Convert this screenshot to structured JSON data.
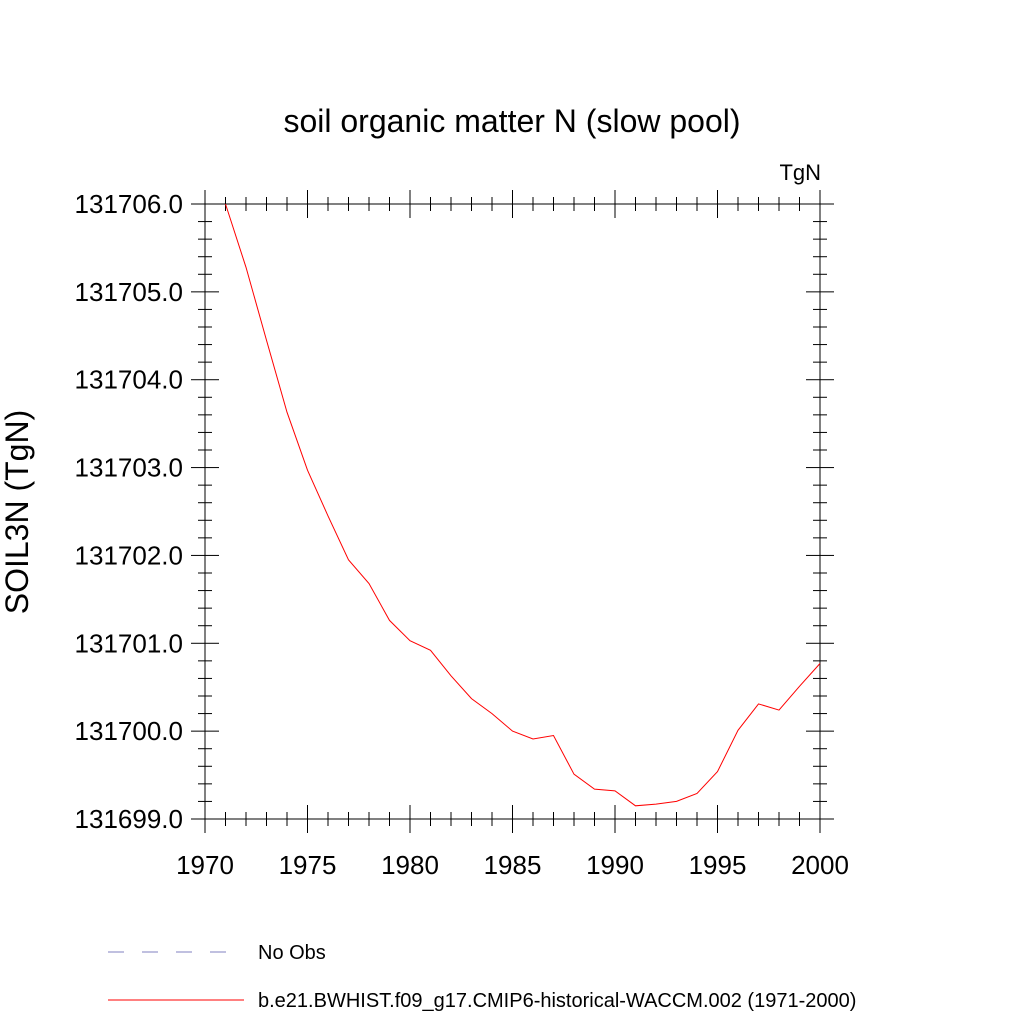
{
  "chart_data": {
    "type": "line",
    "title": "soil organic matter N (slow pool)",
    "units": "TgN",
    "ylabel": "SOIL3N  (TgN)",
    "xlabel": "",
    "xlim": [
      1970,
      2000
    ],
    "ylim": [
      131699.0,
      131706.0
    ],
    "x_ticks": [
      "1970",
      "1975",
      "1980",
      "1985",
      "1990",
      "1995",
      "2000"
    ],
    "y_ticks": [
      "131699.0",
      "131700.0",
      "131701.0",
      "131702.0",
      "131703.0",
      "131704.0",
      "131705.0",
      "131706.0"
    ],
    "series": [
      {
        "name": "b.e21.BWHIST.f09_g17.CMIP6-historical-WACCM.002 (1971-2000)",
        "color": "#ff0000",
        "style": "solid",
        "x": [
          1971,
          1972,
          1973,
          1974,
          1975,
          1976,
          1977,
          1978,
          1979,
          1980,
          1981,
          1982,
          1983,
          1984,
          1985,
          1986,
          1987,
          1988,
          1989,
          1990,
          1991,
          1992,
          1993,
          1994,
          1995,
          1996,
          1997,
          1998,
          1999,
          2000
        ],
        "y": [
          131706.0,
          131705.28,
          131704.45,
          131703.63,
          131702.97,
          131702.45,
          131701.95,
          131701.68,
          131701.26,
          131701.03,
          131700.92,
          131700.63,
          131700.37,
          131700.2,
          131700.0,
          131699.91,
          131699.95,
          131699.51,
          131699.34,
          131699.32,
          131699.15,
          131699.17,
          131699.2,
          131699.29,
          131699.54,
          131700.01,
          131700.31,
          131700.24,
          131700.51,
          131700.77
        ]
      }
    ],
    "legend": [
      {
        "label": "No Obs",
        "color": "#8080c0",
        "style": "dashed"
      },
      {
        "label": "b.e21.BWHIST.f09_g17.CMIP6-historical-WACCM.002 (1971-2000)",
        "color": "#ff0000",
        "style": "solid"
      }
    ]
  }
}
